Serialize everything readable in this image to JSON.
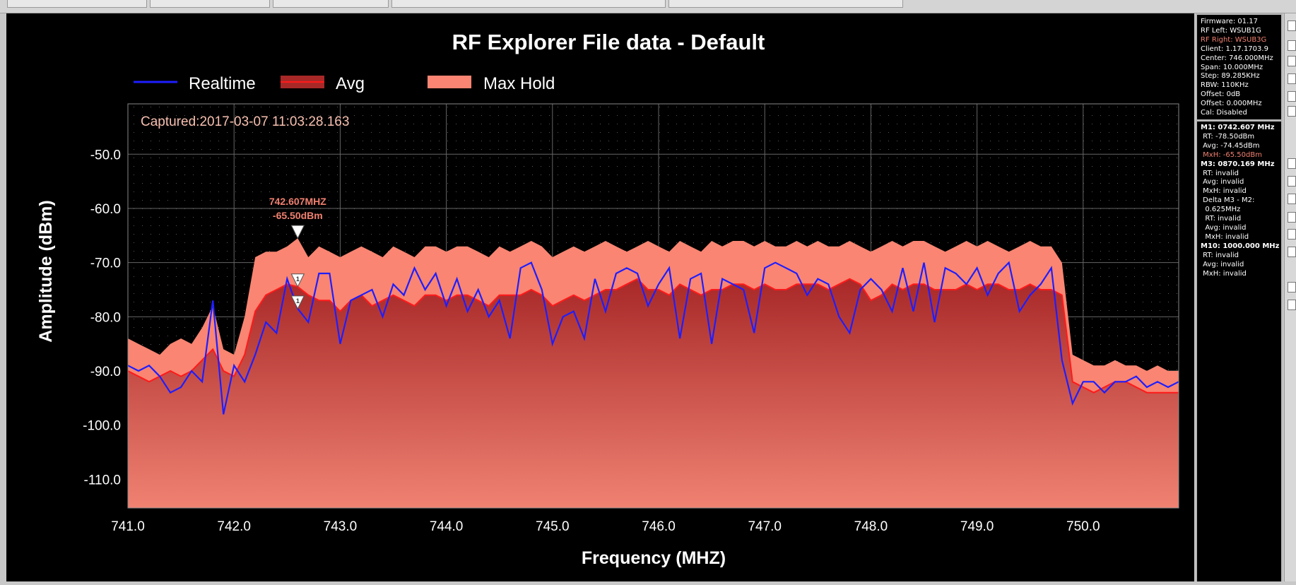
{
  "window": {
    "title": "RF Explorer File data - Default",
    "captured": "Captured:2017-03-07 11:03:28.163"
  },
  "legend": [
    "Realtime",
    "Avg",
    "Max Hold"
  ],
  "marker_label": {
    "freq": "742.607MHZ",
    "amp": "-65.50dBm",
    "ids": [
      "1",
      "1"
    ]
  },
  "info": {
    "device": [
      {
        "text": "Firmware: 01.17",
        "color": "white"
      },
      {
        "text": "RF Left: WSUB1G",
        "color": "white"
      },
      {
        "text": "RF Right: WSUB3G",
        "color": "orange"
      },
      {
        "text": "Client: 1.17.1703.9",
        "color": "white"
      },
      {
        "text": "Center: 746.000MHz",
        "color": "white"
      },
      {
        "text": "Span: 10.000MHz",
        "color": "white"
      },
      {
        "text": "Step: 89.285KHz",
        "color": "white"
      },
      {
        "text": "RBW: 110KHz",
        "color": "white"
      },
      {
        "text": "Offset: 0dB",
        "color": "white"
      },
      {
        "text": "Offset: 0.000MHz",
        "color": "white"
      },
      {
        "text": "Cal: Disabled",
        "color": "white"
      }
    ],
    "markers": [
      {
        "text": "M1: 0742.607 MHz",
        "style": "bold"
      },
      {
        "text": " RT: -78.50dBm",
        "style": ""
      },
      {
        "text": " Avg: -74.45dBm",
        "style": ""
      },
      {
        "text": " MxH: -65.50dBm",
        "style": "orange"
      },
      {
        "text": "M3: 0870.169 MHz",
        "style": "bold"
      },
      {
        "text": " RT: invalid",
        "style": ""
      },
      {
        "text": " Avg: invalid",
        "style": ""
      },
      {
        "text": " MxH: invalid",
        "style": ""
      },
      {
        "text": " Delta M3 - M2:",
        "style": ""
      },
      {
        "text": "  0.625MHz",
        "style": ""
      },
      {
        "text": "  RT: invalid",
        "style": ""
      },
      {
        "text": "  Avg: invalid",
        "style": ""
      },
      {
        "text": "  MxH: invalid",
        "style": ""
      },
      {
        "text": "M10: 1000.000 MHz",
        "style": "bold"
      },
      {
        "text": " RT: invalid",
        "style": ""
      },
      {
        "text": " Avg: invalid",
        "style": ""
      },
      {
        "text": " MxH: invalid",
        "style": ""
      }
    ]
  },
  "colors": {
    "realtime": "#1e1eff",
    "avg_line": "#ff1a1a",
    "avg_fill_top": "#a82828",
    "avg_fill_bottom": "#f08272",
    "maxhold": "#f98572",
    "grid": "#666666"
  },
  "chart_data": {
    "type": "area",
    "title": "RF Explorer File data - Default",
    "xlabel": "Frequency (MHZ)",
    "ylabel": "Amplitude (dBm)",
    "xlim": [
      741.0,
      750.9
    ],
    "ylim": [
      -115.3,
      -40.7
    ],
    "xticks": [
      741.0,
      742.0,
      743.0,
      744.0,
      745.0,
      746.0,
      747.0,
      748.0,
      749.0,
      750.0
    ],
    "xtick_labels": [
      "741.0",
      "742.0",
      "743.0",
      "744.0",
      "745.0",
      "746.0",
      "747.0",
      "748.0",
      "749.0",
      "750.0"
    ],
    "yticks": [
      -50,
      -60,
      -70,
      -80,
      -90,
      -100,
      -110
    ],
    "ytick_labels": [
      "-50.0",
      "-60.0",
      "-70.0",
      "-80.0",
      "-90.0",
      "-100.0",
      "-110.0"
    ],
    "grid": true,
    "legend_position": "top-left",
    "x": [
      741.0,
      741.1,
      741.2,
      741.3,
      741.4,
      741.5,
      741.6,
      741.7,
      741.8,
      741.9,
      742.0,
      742.1,
      742.2,
      742.3,
      742.4,
      742.5,
      742.6,
      742.7,
      742.8,
      742.9,
      743.0,
      743.1,
      743.2,
      743.3,
      743.4,
      743.5,
      743.6,
      743.7,
      743.8,
      743.9,
      744.0,
      744.1,
      744.2,
      744.3,
      744.4,
      744.5,
      744.6,
      744.7,
      744.8,
      744.9,
      745.0,
      745.1,
      745.2,
      745.3,
      745.4,
      745.5,
      745.6,
      745.7,
      745.8,
      745.9,
      746.0,
      746.1,
      746.2,
      746.3,
      746.4,
      746.5,
      746.6,
      746.7,
      746.8,
      746.9,
      747.0,
      747.1,
      747.2,
      747.3,
      747.4,
      747.5,
      747.6,
      747.7,
      747.8,
      747.9,
      748.0,
      748.1,
      748.2,
      748.3,
      748.4,
      748.5,
      748.6,
      748.7,
      748.8,
      748.9,
      749.0,
      749.1,
      749.2,
      749.3,
      749.4,
      749.5,
      749.6,
      749.7,
      749.8,
      749.9,
      750.0,
      750.1,
      750.2,
      750.3,
      750.4,
      750.5,
      750.6,
      750.7,
      750.8,
      750.9
    ],
    "series": [
      {
        "name": "Max Hold",
        "values": [
          -84,
          -85,
          -86,
          -87,
          -85,
          -84,
          -85,
          -82,
          -78,
          -86,
          -87,
          -80,
          -69,
          -68,
          -68,
          -67,
          -65.5,
          -69,
          -67,
          -68,
          -69,
          -68,
          -67,
          -68,
          -69,
          -67,
          -68,
          -69,
          -67,
          -67,
          -68,
          -67,
          -67,
          -68,
          -69,
          -67,
          -68,
          -67,
          -66,
          -67,
          -69,
          -68,
          -67,
          -68,
          -67,
          -66,
          -67,
          -68,
          -67,
          -66,
          -67,
          -68,
          -66,
          -67,
          -68,
          -66,
          -67,
          -66,
          -66,
          -67,
          -66,
          -67,
          -67,
          -66,
          -67,
          -66,
          -67,
          -67,
          -66,
          -67,
          -68,
          -67,
          -66,
          -67,
          -66,
          -66,
          -67,
          -68,
          -67,
          -66,
          -67,
          -66,
          -67,
          -68,
          -67,
          -66,
          -67,
          -67,
          -70,
          -87,
          -88,
          -89,
          -89,
          -88,
          -89,
          -89,
          -90,
          -89,
          -90,
          -90
        ]
      },
      {
        "name": "Avg",
        "values": [
          -90,
          -91,
          -92,
          -91,
          -90,
          -91,
          -90,
          -88,
          -86,
          -90,
          -91,
          -87,
          -79,
          -76,
          -75,
          -74,
          -74.45,
          -76,
          -77,
          -77,
          -79,
          -77,
          -76,
          -78,
          -77,
          -76,
          -77,
          -78,
          -76,
          -76,
          -77,
          -76,
          -76,
          -77,
          -78,
          -76,
          -76,
          -76,
          -75,
          -76,
          -78,
          -77,
          -76,
          -77,
          -76,
          -75,
          -75,
          -74,
          -73,
          -75,
          -75,
          -76,
          -74,
          -75,
          -76,
          -75,
          -75,
          -74,
          -74,
          -75,
          -74,
          -75,
          -75,
          -74,
          -74,
          -74,
          -75,
          -74,
          -73,
          -74,
          -77,
          -76,
          -74,
          -75,
          -74,
          -74,
          -75,
          -75,
          -75,
          -74,
          -75,
          -74,
          -74,
          -75,
          -75,
          -74,
          -75,
          -75,
          -76,
          -92,
          -93,
          -94,
          -93,
          -92,
          -92,
          -93,
          -94,
          -94,
          -94,
          -94
        ]
      },
      {
        "name": "Realtime",
        "values": [
          -89,
          -90,
          -89,
          -91,
          -94,
          -93,
          -90,
          -92,
          -77,
          -98,
          -89,
          -92,
          -87,
          -81,
          -83,
          -73,
          -78.5,
          -81,
          -72,
          -72,
          -85,
          -77,
          -76,
          -75,
          -80,
          -74,
          -76,
          -71,
          -75,
          -72,
          -78,
          -73,
          -79,
          -75,
          -80,
          -77,
          -84,
          -71,
          -70,
          -75,
          -85,
          -80,
          -79,
          -84,
          -73,
          -79,
          -72,
          -71,
          -72,
          -78,
          -74,
          -71,
          -84,
          -73,
          -72,
          -85,
          -73,
          -74,
          -75,
          -83,
          -71,
          -70,
          -71,
          -72,
          -76,
          -73,
          -74,
          -80,
          -83,
          -75,
          -73,
          -75,
          -79,
          -71,
          -79,
          -70,
          -81,
          -71,
          -72,
          -74,
          -71,
          -76,
          -72,
          -70,
          -79,
          -76,
          -74,
          -71,
          -88,
          -96,
          -92,
          -92,
          -94,
          -92,
          -92,
          -91,
          -93,
          -92,
          -93,
          -92
        ]
      }
    ]
  }
}
